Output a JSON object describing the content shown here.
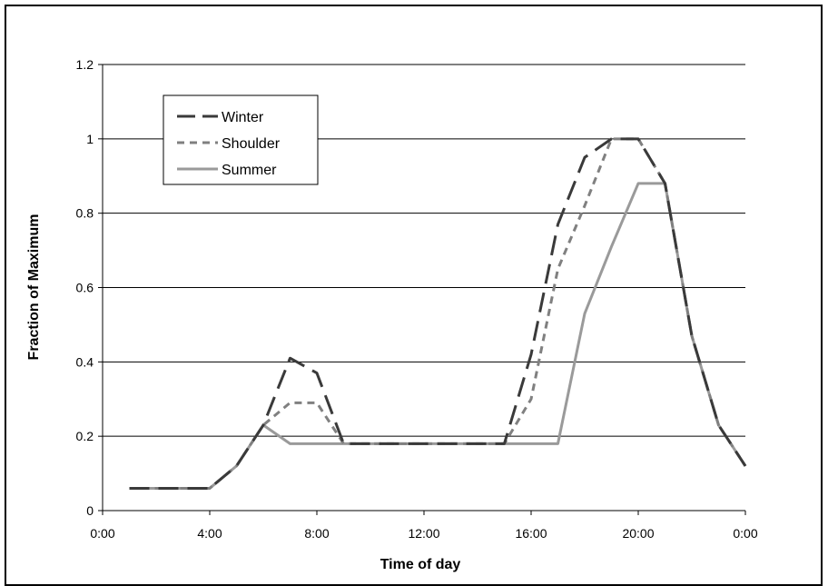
{
  "chart_data": {
    "type": "line",
    "title": "",
    "xlabel": "Time of day",
    "ylabel": "Fraction of Maximum",
    "ylim": [
      0,
      1.2
    ],
    "yticks": [
      "0",
      "0.2",
      "0.4",
      "0.6",
      "0.8",
      "1",
      "1.2"
    ],
    "xticks": [
      "0:00",
      "4:00",
      "8:00",
      "12:00",
      "16:00",
      "20:00",
      "0:00"
    ],
    "grid": "horizontal",
    "legend_position": "top-left",
    "x_hours": [
      1,
      2,
      3,
      4,
      5,
      6,
      7,
      8,
      9,
      10,
      11,
      12,
      13,
      14,
      15,
      16,
      17,
      18,
      19,
      20,
      21,
      22,
      23,
      24
    ],
    "series": [
      {
        "name": "Winter",
        "color": "#3a3a3a",
        "style": "dashed",
        "values": [
          0.06,
          0.06,
          0.06,
          0.06,
          0.12,
          0.23,
          0.41,
          0.37,
          0.18,
          0.18,
          0.18,
          0.18,
          0.18,
          0.18,
          0.18,
          0.42,
          0.77,
          0.95,
          1.0,
          1.0,
          0.88,
          0.47,
          0.23,
          0.12
        ]
      },
      {
        "name": "Shoulder",
        "color": "#808080",
        "style": "dotted",
        "values": [
          0.06,
          0.06,
          0.06,
          0.06,
          0.12,
          0.23,
          0.29,
          0.29,
          0.18,
          0.18,
          0.18,
          0.18,
          0.18,
          0.18,
          0.18,
          0.3,
          0.65,
          0.82,
          1.0,
          1.0,
          0.88,
          0.47,
          0.23,
          0.12
        ]
      },
      {
        "name": "Summer",
        "color": "#9a9a9a",
        "style": "solid",
        "values": [
          0.06,
          0.06,
          0.06,
          0.06,
          0.12,
          0.23,
          0.18,
          0.18,
          0.18,
          0.18,
          0.18,
          0.18,
          0.18,
          0.18,
          0.18,
          0.18,
          0.18,
          0.53,
          0.71,
          0.88,
          0.88,
          0.47,
          0.23,
          0.12
        ]
      }
    ]
  }
}
